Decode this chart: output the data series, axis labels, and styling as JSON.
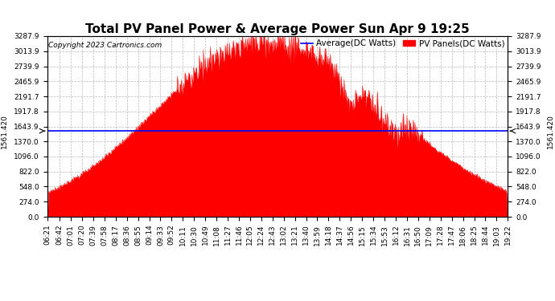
{
  "title": "Total PV Panel Power & Average Power Sun Apr 9 19:25",
  "copyright": "Copyright 2023 Cartronics.com",
  "average_label": "Average(DC Watts)",
  "panel_label": "PV Panels(DC Watts)",
  "average_value": 1561.42,
  "y_max": 3287.9,
  "y_ticks": [
    0.0,
    274.0,
    548.0,
    822.0,
    1096.0,
    1370.0,
    1643.9,
    1917.8,
    2191.7,
    2465.9,
    2739.9,
    3013.9,
    3287.9
  ],
  "y_tick_labels": [
    "0.0",
    "274.0",
    "548.0",
    "822.0",
    "1096.0",
    "1370.0",
    "1643.9",
    "1917.8",
    "2191.7",
    "2465.9",
    "2739.9",
    "3013.9",
    "3287.9"
  ],
  "fill_color": "#ff0000",
  "average_color": "#0000ff",
  "background_color": "#ffffff",
  "grid_color": "#bbbbbb",
  "title_fontsize": 11,
  "tick_fontsize": 6.5,
  "legend_fontsize": 7.5,
  "copyright_fontsize": 6.5,
  "avg_label_color": "#0000ff",
  "panel_label_color": "#ff0000",
  "x_tick_labels": [
    "06:21",
    "06:42",
    "07:01",
    "07:20",
    "07:39",
    "07:58",
    "08:17",
    "08:36",
    "08:55",
    "09:14",
    "09:33",
    "09:52",
    "10:11",
    "10:30",
    "10:49",
    "11:08",
    "11:27",
    "11:46",
    "12:05",
    "12:24",
    "12:43",
    "13:02",
    "13:21",
    "13:40",
    "13:59",
    "14:18",
    "14:37",
    "14:56",
    "15:15",
    "15:34",
    "15:53",
    "16:12",
    "16:31",
    "16:50",
    "17:09",
    "17:28",
    "17:47",
    "18:06",
    "18:25",
    "18:44",
    "19:03",
    "19:22"
  ]
}
